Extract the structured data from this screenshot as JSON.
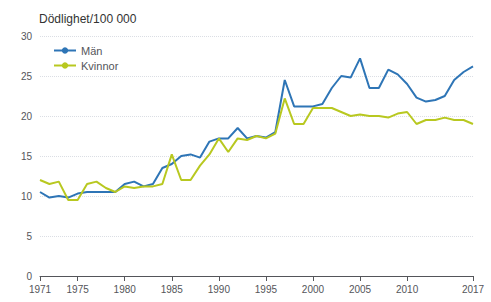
{
  "chart_data": {
    "type": "line",
    "title": "Dödlighet/100 000",
    "x": [
      1971,
      1972,
      1973,
      1974,
      1975,
      1976,
      1977,
      1978,
      1979,
      1980,
      1981,
      1982,
      1983,
      1984,
      1985,
      1986,
      1987,
      1988,
      1989,
      1990,
      1991,
      1992,
      1993,
      1994,
      1995,
      1996,
      1997,
      1998,
      1999,
      2000,
      2001,
      2002,
      2003,
      2004,
      2005,
      2006,
      2007,
      2008,
      2009,
      2010,
      2011,
      2012,
      2013,
      2014,
      2015,
      2016,
      2017
    ],
    "series": [
      {
        "name": "Män",
        "color": "#2E75B6",
        "values": [
          10.5,
          9.8,
          10.0,
          9.8,
          10.3,
          10.5,
          10.5,
          10.5,
          10.5,
          11.5,
          11.8,
          11.2,
          11.5,
          13.5,
          14.0,
          15.0,
          15.2,
          14.8,
          16.8,
          17.2,
          17.2,
          18.5,
          17.2,
          17.5,
          17.3,
          18.0,
          24.5,
          21.2,
          21.2,
          21.2,
          21.5,
          23.5,
          25.0,
          24.8,
          27.2,
          23.5,
          23.5,
          25.8,
          25.2,
          24.0,
          22.3,
          21.8,
          22.0,
          22.5,
          24.5,
          25.5,
          26.2
        ]
      },
      {
        "name": "Kvinnor",
        "color": "#B8C820",
        "values": [
          12.0,
          11.5,
          11.8,
          9.5,
          9.5,
          11.5,
          11.8,
          11.0,
          10.5,
          11.2,
          11.0,
          11.2,
          11.2,
          11.5,
          15.2,
          12.0,
          12.0,
          13.8,
          15.2,
          17.2,
          15.5,
          17.2,
          17.0,
          17.5,
          17.2,
          17.8,
          22.2,
          19.0,
          19.0,
          21.0,
          21.0,
          21.0,
          20.5,
          20.0,
          20.2,
          20.0,
          20.0,
          19.8,
          20.3,
          20.5,
          19.0,
          19.5,
          19.5,
          19.8,
          19.5,
          19.5,
          19.0
        ]
      }
    ],
    "xlim": [
      1971,
      2017
    ],
    "xticks": [
      1971,
      1975,
      1980,
      1985,
      1990,
      1995,
      2000,
      2005,
      2010,
      2017
    ],
    "ylim": [
      0,
      30
    ],
    "yticks": [
      0,
      5,
      10,
      15,
      20,
      25,
      30
    ],
    "grid": true,
    "legend": "upper left"
  }
}
